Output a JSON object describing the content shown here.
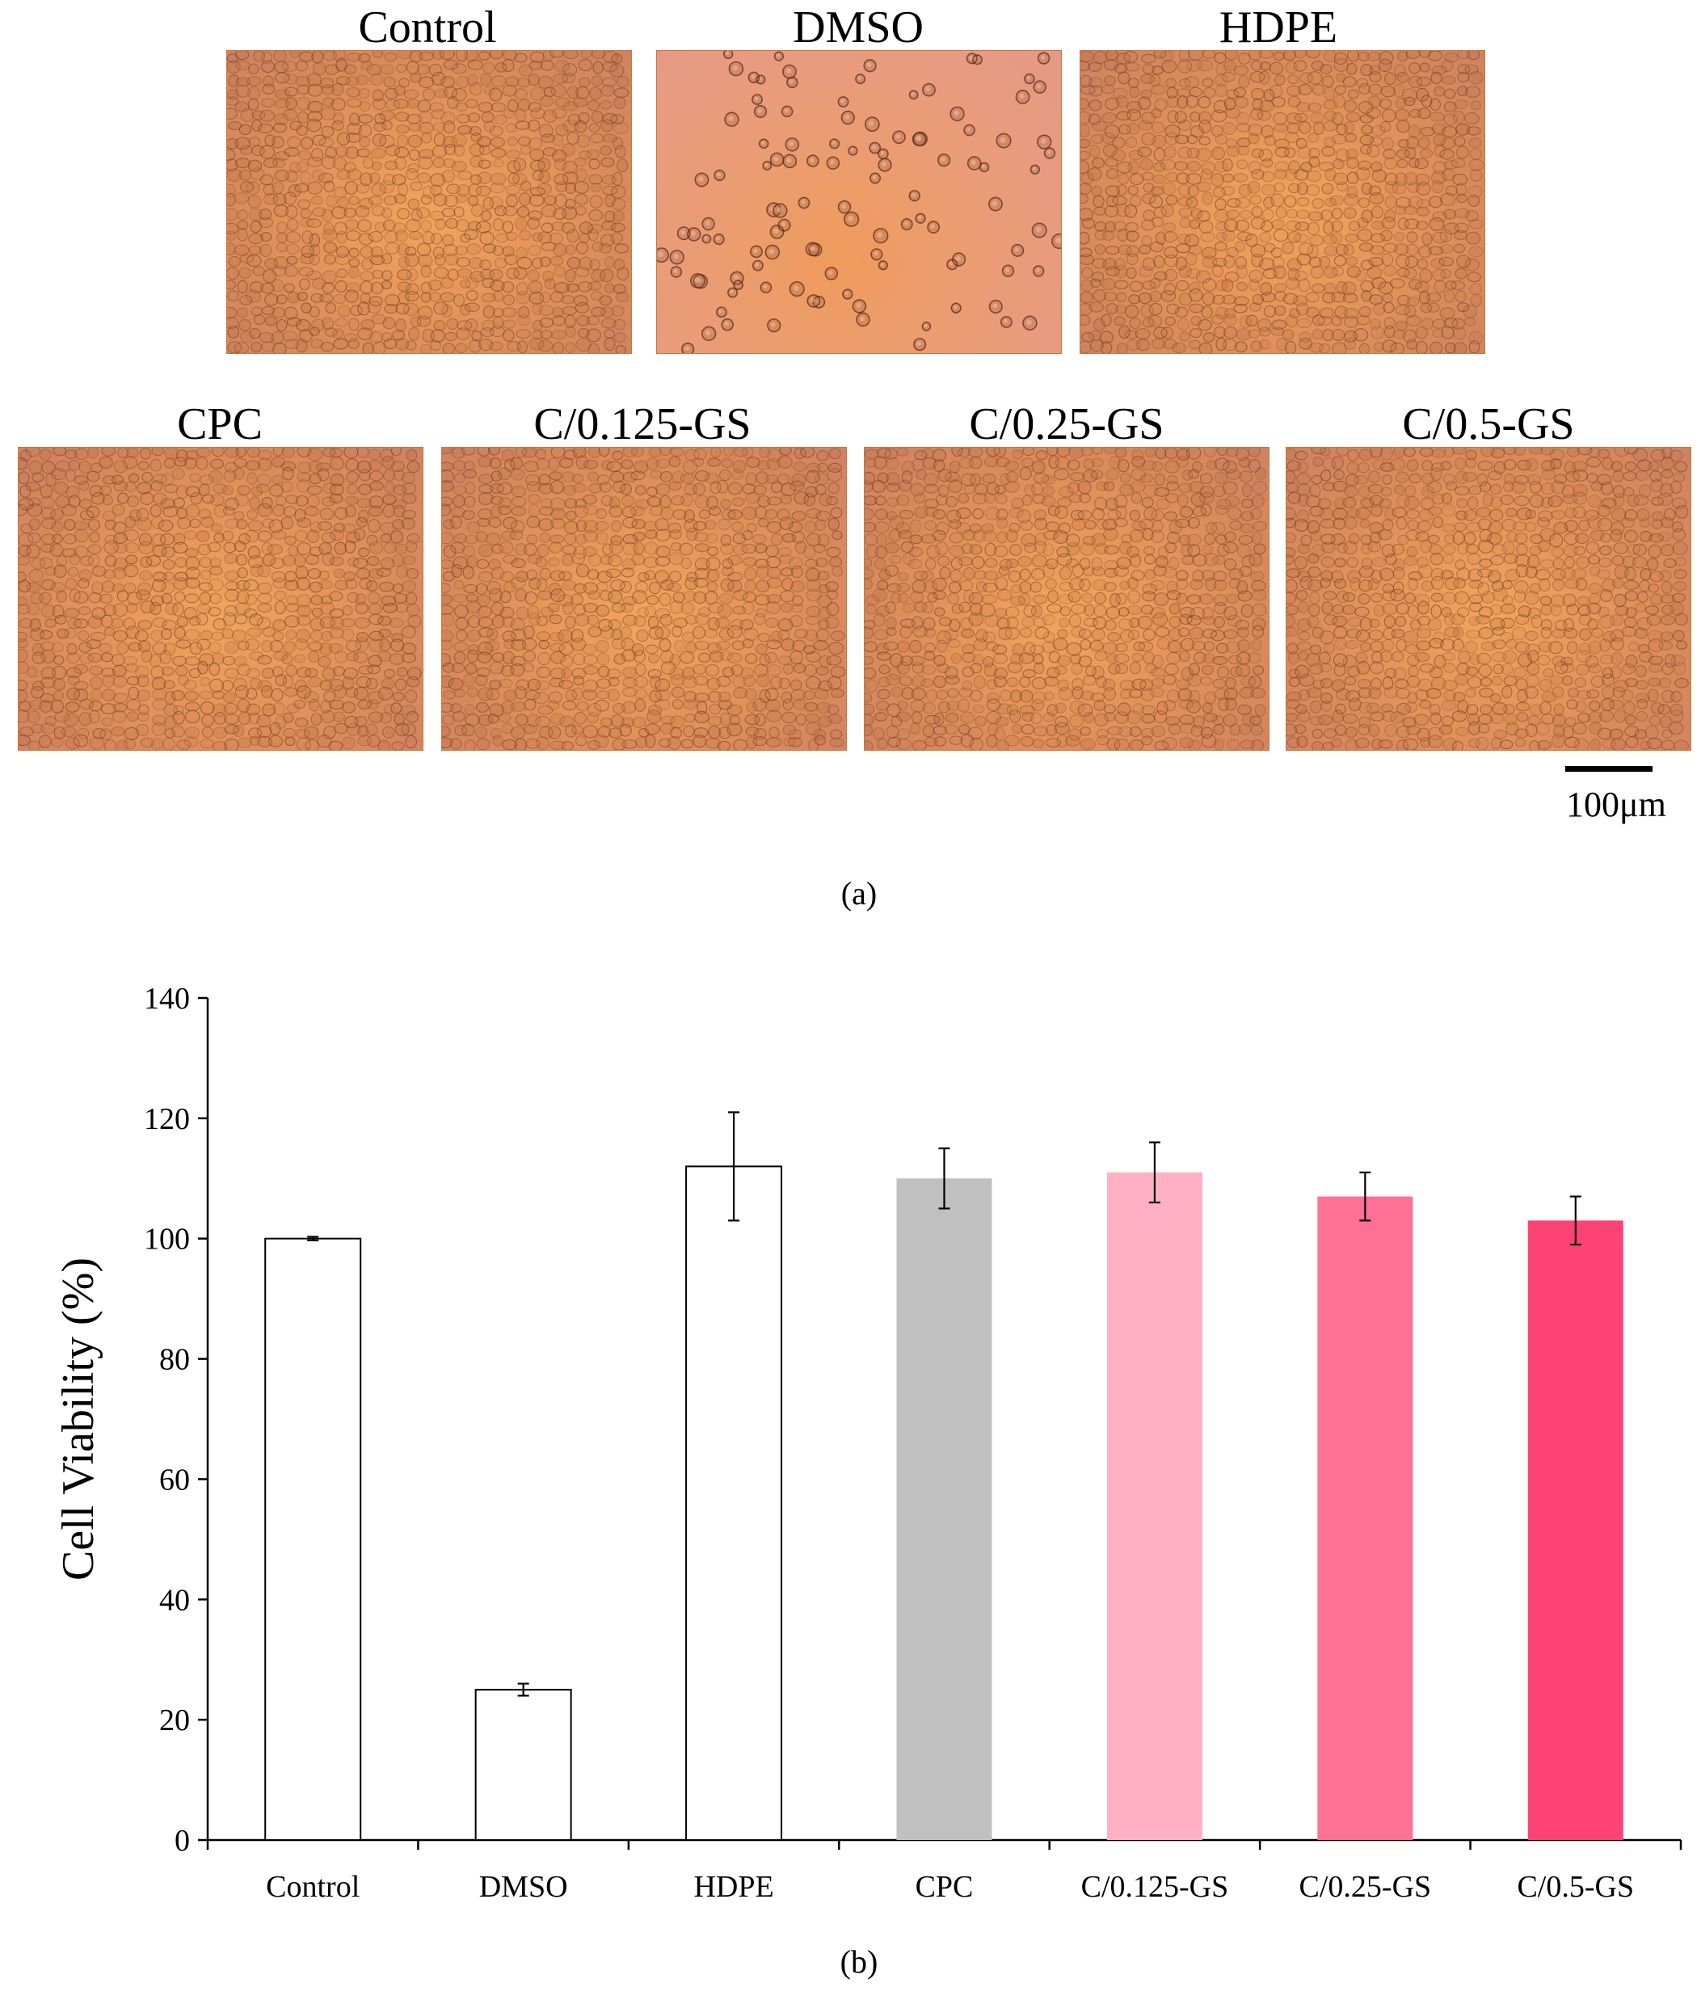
{
  "micrographs": {
    "panels": [
      {
        "label": "Control",
        "pattern": "dense"
      },
      {
        "label": "DMSO",
        "pattern": "sparse"
      },
      {
        "label": "HDPE",
        "pattern": "dense"
      },
      {
        "label": "CPC",
        "pattern": "dense"
      },
      {
        "label": "C/0.125-GS",
        "pattern": "dense"
      },
      {
        "label": "C/0.25-GS",
        "pattern": "dense"
      },
      {
        "label": "C/0.5-GS",
        "pattern": "dense"
      }
    ],
    "scale_bar_label": "100μm",
    "caption": "(a)"
  },
  "chart_data": {
    "type": "bar",
    "caption": "(b)",
    "categories": [
      "Control",
      "DMSO",
      "HDPE",
      "CPC",
      "C/0.125-GS",
      "C/0.25-GS",
      "C/0.5-GS"
    ],
    "values": [
      100,
      25,
      112,
      110,
      111,
      107,
      103
    ],
    "errors": [
      0.3,
      1,
      9,
      5,
      5,
      4,
      4
    ],
    "colors": [
      "#ffffff",
      "#ffffff",
      "#ffffff",
      "#c0c0c0",
      "#ffb0c4",
      "#ff7096",
      "#ff4275"
    ],
    "ylabel": "Cell Viability (%)",
    "xlabel": "",
    "ylim": [
      0,
      140
    ],
    "yticks": [
      0,
      20,
      40,
      60,
      80,
      100,
      120,
      140
    ],
    "grid": false
  }
}
